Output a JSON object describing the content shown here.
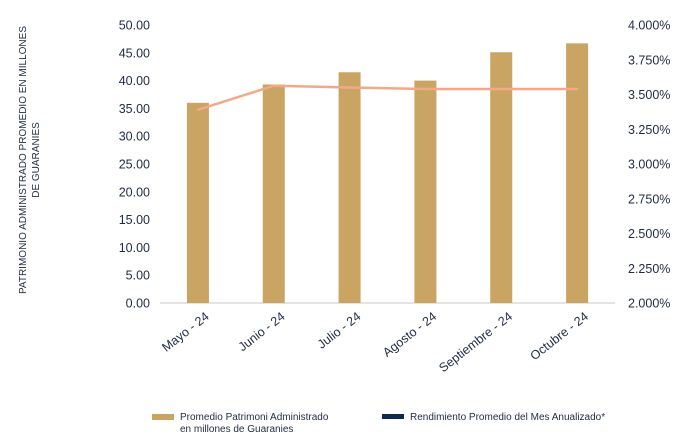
{
  "chart_data": {
    "type": "bar+line",
    "categories": [
      "Mayo - 24",
      "Junio - 24",
      "Julio - 24",
      "Agosto - 24",
      "Septiembre - 24",
      "Octubre - 24"
    ],
    "series": [
      {
        "name": "Promedio Patrimoni Administrado en millones de Guaranies",
        "name_lines": [
          "Promedio Patrimoni Administrado",
          "en millones de Guaranies"
        ],
        "type": "bar",
        "axis": "left",
        "color": "#c9a463",
        "values": [
          36.0,
          39.3,
          41.5,
          40.0,
          45.1,
          46.7
        ]
      },
      {
        "name": "Rendimiento Promedio del Mes Anualizado*",
        "type": "line",
        "axis": "right",
        "color": "#f2a98a",
        "legend_color": "#0f2a4f",
        "values": [
          3.39,
          3.563,
          3.55,
          3.54,
          3.54,
          3.54
        ]
      }
    ],
    "ylabel_lines": [
      "PATRIMONIO ADMINISTRADO PROMEDIO EN MILLONES",
      "DE GUARANIES"
    ],
    "y_left": {
      "min": 0,
      "max": 50,
      "step": 5,
      "tick_labels": [
        "0.00",
        "5.00",
        "10.00",
        "15.00",
        "20.00",
        "25.00",
        "30.00",
        "35.00",
        "40.00",
        "45.00",
        "50.00"
      ]
    },
    "y_right": {
      "min": 2.0,
      "max": 4.0,
      "step": 0.25,
      "tick_labels": [
        "2.000%",
        "2.250%",
        "2.500%",
        "2.750%",
        "3.000%",
        "3.250%",
        "3.500%",
        "3.750%",
        "4.000%"
      ]
    },
    "grid": false,
    "legend_position": "bottom"
  }
}
